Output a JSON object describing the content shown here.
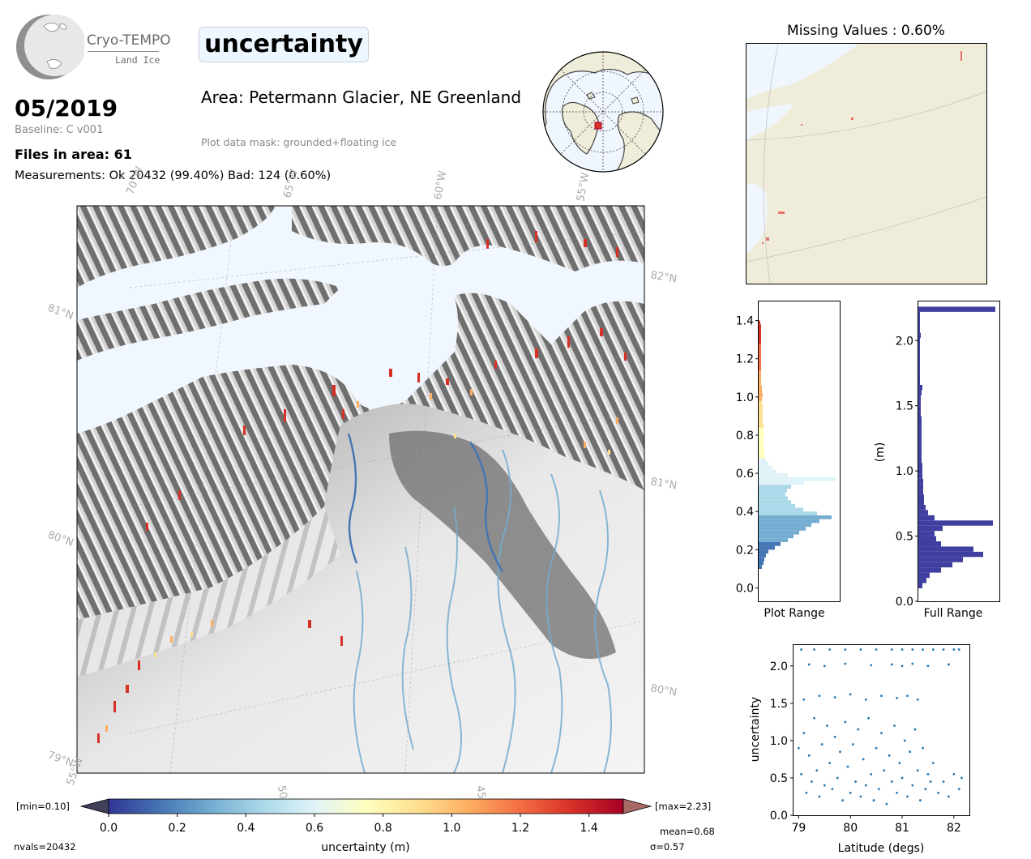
{
  "header": {
    "logo_text": "Cryo-TEMPO",
    "logo_sub": "Land Ice",
    "title": "uncertainty",
    "date": "05/2019",
    "baseline": "Baseline: C v001",
    "files": "Files in area: 61",
    "measurements": "Measurements: Ok 20432 (99.40%) Bad: 124 (0.60%)",
    "area": "Area: Petermann Glacier, NE Greenland",
    "mask": "Plot data mask: grounded+floating ice"
  },
  "map": {
    "lon_labels": [
      "70°W",
      "65°W",
      "60°W",
      "55°W"
    ],
    "lon_labels_bottom": [
      "55°W",
      "50°W",
      "45°W"
    ],
    "lat_labels_left": [
      "81°N",
      "80°N",
      "79°N"
    ],
    "lat_labels_right": [
      "82°N",
      "81°N",
      "80°N"
    ]
  },
  "colorbar": {
    "label": "uncertainty (m)",
    "ticks": [
      "0.0",
      "0.2",
      "0.4",
      "0.6",
      "0.8",
      "1.0",
      "1.2",
      "1.4"
    ],
    "min_label": "[min=0.10]",
    "max_label": "[max=2.23]",
    "mean": "mean=0.68",
    "sigma": "σ=0.57",
    "nvals": "nvals=20432",
    "colors": [
      "#313695",
      "#4575b4",
      "#74add1",
      "#abd9e9",
      "#e0f3f8",
      "#ffffbf",
      "#fee090",
      "#fdae61",
      "#f46d43",
      "#d73027",
      "#a50026"
    ]
  },
  "missing": {
    "title": "Missing Values : 0.60%"
  },
  "chart_data": [
    {
      "type": "bar",
      "name": "plot-range-histogram",
      "orientation": "horizontal",
      "xlabel": "Plot Range",
      "ylim": [
        -0.07,
        1.5
      ],
      "yticks": [
        "0.0",
        "0.2",
        "0.4",
        "0.6",
        "0.8",
        "1.0",
        "1.2",
        "1.4"
      ],
      "bins": [
        [
          0.1,
          0.04
        ],
        [
          0.12,
          0.06
        ],
        [
          0.14,
          0.07
        ],
        [
          0.16,
          0.09
        ],
        [
          0.18,
          0.12
        ],
        [
          0.2,
          0.2
        ],
        [
          0.22,
          0.27
        ],
        [
          0.24,
          0.36
        ],
        [
          0.26,
          0.43
        ],
        [
          0.28,
          0.5
        ],
        [
          0.3,
          0.58
        ],
        [
          0.32,
          0.65
        ],
        [
          0.34,
          0.75
        ],
        [
          0.36,
          0.9
        ],
        [
          0.38,
          0.72
        ],
        [
          0.4,
          0.55
        ],
        [
          0.42,
          0.45
        ],
        [
          0.44,
          0.4
        ],
        [
          0.46,
          0.36
        ],
        [
          0.48,
          0.33
        ],
        [
          0.5,
          0.35
        ],
        [
          0.52,
          0.4
        ],
        [
          0.54,
          0.56
        ],
        [
          0.56,
          0.95
        ],
        [
          0.58,
          0.36
        ],
        [
          0.6,
          0.22
        ],
        [
          0.62,
          0.16
        ],
        [
          0.64,
          0.12
        ],
        [
          0.66,
          0.09
        ],
        [
          0.68,
          0.08
        ],
        [
          0.7,
          0.07
        ],
        [
          0.72,
          0.07
        ],
        [
          0.74,
          0.06
        ],
        [
          0.76,
          0.06
        ],
        [
          0.78,
          0.06
        ],
        [
          0.8,
          0.07
        ],
        [
          0.82,
          0.06
        ],
        [
          0.84,
          0.06
        ],
        [
          0.86,
          0.05
        ],
        [
          0.88,
          0.05
        ],
        [
          0.9,
          0.05
        ],
        [
          0.92,
          0.05
        ],
        [
          0.94,
          0.05
        ],
        [
          0.96,
          0.04
        ],
        [
          0.98,
          0.04
        ],
        [
          1.0,
          0.05
        ],
        [
          1.02,
          0.04
        ],
        [
          1.04,
          0.04
        ],
        [
          1.06,
          0.03
        ],
        [
          1.08,
          0.03
        ],
        [
          1.1,
          0.03
        ],
        [
          1.12,
          0.03
        ],
        [
          1.14,
          0.03
        ],
        [
          1.16,
          0.03
        ],
        [
          1.18,
          0.03
        ],
        [
          1.2,
          0.03
        ],
        [
          1.22,
          0.03
        ],
        [
          1.24,
          0.03
        ],
        [
          1.26,
          0.03
        ],
        [
          1.28,
          0.03
        ],
        [
          1.3,
          0.03
        ],
        [
          1.32,
          0.03
        ],
        [
          1.34,
          0.03
        ],
        [
          1.36,
          0.03
        ],
        [
          1.38,
          0.02
        ]
      ]
    },
    {
      "type": "bar",
      "name": "full-range-histogram",
      "orientation": "horizontal",
      "xlabel": "Full Range",
      "ylabel": "(m)",
      "ylim": [
        0.0,
        2.3
      ],
      "yticks": [
        "0.0",
        "0.5",
        "1.0",
        "1.5",
        "2.0"
      ],
      "bins": [
        [
          0.1,
          0.05
        ],
        [
          0.14,
          0.1
        ],
        [
          0.18,
          0.14
        ],
        [
          0.22,
          0.28
        ],
        [
          0.26,
          0.42
        ],
        [
          0.3,
          0.55
        ],
        [
          0.34,
          0.8
        ],
        [
          0.38,
          0.68
        ],
        [
          0.42,
          0.28
        ],
        [
          0.46,
          0.22
        ],
        [
          0.5,
          0.2
        ],
        [
          0.54,
          0.3
        ],
        [
          0.58,
          0.92
        ],
        [
          0.62,
          0.2
        ],
        [
          0.66,
          0.12
        ],
        [
          0.7,
          0.09
        ],
        [
          0.74,
          0.07
        ],
        [
          0.78,
          0.07
        ],
        [
          0.82,
          0.06
        ],
        [
          0.86,
          0.06
        ],
        [
          0.9,
          0.06
        ],
        [
          0.94,
          0.05
        ],
        [
          0.98,
          0.05
        ],
        [
          1.02,
          0.05
        ],
        [
          1.06,
          0.04
        ],
        [
          1.1,
          0.04
        ],
        [
          1.14,
          0.04
        ],
        [
          1.18,
          0.04
        ],
        [
          1.22,
          0.04
        ],
        [
          1.26,
          0.04
        ],
        [
          1.3,
          0.04
        ],
        [
          1.34,
          0.04
        ],
        [
          1.38,
          0.04
        ],
        [
          1.42,
          0.03
        ],
        [
          1.46,
          0.03
        ],
        [
          1.5,
          0.03
        ],
        [
          1.54,
          0.03
        ],
        [
          1.58,
          0.04
        ],
        [
          1.62,
          0.05
        ],
        [
          1.66,
          0.02
        ],
        [
          1.7,
          0.02
        ],
        [
          1.74,
          0.02
        ],
        [
          1.78,
          0.02
        ],
        [
          1.82,
          0.02
        ],
        [
          1.86,
          0.02
        ],
        [
          1.9,
          0.02
        ],
        [
          1.94,
          0.02
        ],
        [
          1.98,
          0.02
        ],
        [
          2.02,
          0.03
        ],
        [
          2.06,
          0.02
        ],
        [
          2.1,
          0.02
        ],
        [
          2.14,
          0.02
        ],
        [
          2.18,
          0.02
        ],
        [
          2.22,
          0.95
        ]
      ]
    },
    {
      "type": "scatter",
      "name": "latitude-scatter",
      "xlabel": "Latitude (degs)",
      "ylabel": "uncertainty",
      "xlim": [
        78.9,
        82.3
      ],
      "ylim": [
        0.0,
        2.28
      ],
      "xticks": [
        "79",
        "80",
        "81",
        "82"
      ],
      "yticks": [
        "0.0",
        "0.5",
        "1.0",
        "1.5",
        "2.0"
      ],
      "points": [
        [
          79.0,
          0.9
        ],
        [
          79.05,
          0.55
        ],
        [
          79.1,
          1.1
        ],
        [
          79.15,
          0.3
        ],
        [
          79.2,
          0.8
        ],
        [
          79.25,
          0.45
        ],
        [
          79.3,
          1.3
        ],
        [
          79.35,
          0.6
        ],
        [
          79.4,
          0.25
        ],
        [
          79.45,
          0.95
        ],
        [
          79.5,
          0.4
        ],
        [
          79.55,
          1.2
        ],
        [
          79.6,
          0.7
        ],
        [
          79.65,
          0.35
        ],
        [
          79.7,
          1.05
        ],
        [
          79.75,
          0.5
        ],
        [
          79.8,
          0.85
        ],
        [
          79.85,
          0.2
        ],
        [
          79.9,
          1.25
        ],
        [
          79.95,
          0.65
        ],
        [
          80.0,
          0.3
        ],
        [
          80.05,
          0.95
        ],
        [
          80.1,
          0.45
        ],
        [
          80.15,
          1.15
        ],
        [
          80.2,
          0.25
        ],
        [
          80.25,
          0.75
        ],
        [
          80.3,
          0.4
        ],
        [
          80.35,
          1.3
        ],
        [
          80.4,
          0.55
        ],
        [
          80.45,
          0.2
        ],
        [
          80.5,
          0.9
        ],
        [
          80.55,
          0.35
        ],
        [
          80.6,
          1.1
        ],
        [
          80.65,
          0.6
        ],
        [
          80.7,
          0.15
        ],
        [
          80.75,
          0.8
        ],
        [
          80.8,
          0.45
        ],
        [
          80.85,
          1.2
        ],
        [
          80.9,
          0.3
        ],
        [
          80.95,
          0.7
        ],
        [
          81.0,
          0.5
        ],
        [
          81.05,
          1.0
        ],
        [
          81.1,
          0.25
        ],
        [
          81.15,
          0.85
        ],
        [
          81.2,
          0.4
        ],
        [
          81.25,
          1.15
        ],
        [
          81.3,
          0.6
        ],
        [
          81.35,
          0.2
        ],
        [
          81.4,
          0.9
        ],
        [
          81.45,
          0.35
        ],
        [
          81.5,
          0.55
        ],
        [
          81.55,
          0.45
        ],
        [
          81.6,
          0.7
        ],
        [
          81.7,
          0.3
        ],
        [
          81.8,
          0.45
        ],
        [
          81.9,
          0.25
        ],
        [
          82.0,
          0.55
        ],
        [
          82.1,
          0.35
        ],
        [
          82.15,
          0.5
        ],
        [
          79.1,
          1.55
        ],
        [
          79.4,
          1.6
        ],
        [
          79.7,
          1.58
        ],
        [
          80.0,
          1.62
        ],
        [
          80.3,
          1.55
        ],
        [
          80.6,
          1.6
        ],
        [
          80.9,
          1.57
        ],
        [
          81.1,
          1.6
        ],
        [
          81.3,
          1.55
        ],
        [
          79.2,
          2.02
        ],
        [
          79.5,
          2.0
        ],
        [
          79.9,
          2.03
        ],
        [
          80.4,
          2.01
        ],
        [
          80.8,
          2.02
        ],
        [
          81.0,
          2.0
        ],
        [
          81.2,
          2.03
        ],
        [
          81.5,
          2.0
        ],
        [
          81.9,
          2.02
        ],
        [
          79.05,
          2.22
        ],
        [
          79.3,
          2.22
        ],
        [
          79.6,
          2.22
        ],
        [
          79.9,
          2.22
        ],
        [
          80.2,
          2.22
        ],
        [
          80.5,
          2.22
        ],
        [
          80.8,
          2.22
        ],
        [
          81.0,
          2.22
        ],
        [
          81.2,
          2.22
        ],
        [
          81.4,
          2.22
        ],
        [
          81.6,
          2.22
        ],
        [
          81.8,
          2.22
        ],
        [
          82.0,
          2.22
        ],
        [
          82.1,
          2.22
        ]
      ]
    }
  ]
}
